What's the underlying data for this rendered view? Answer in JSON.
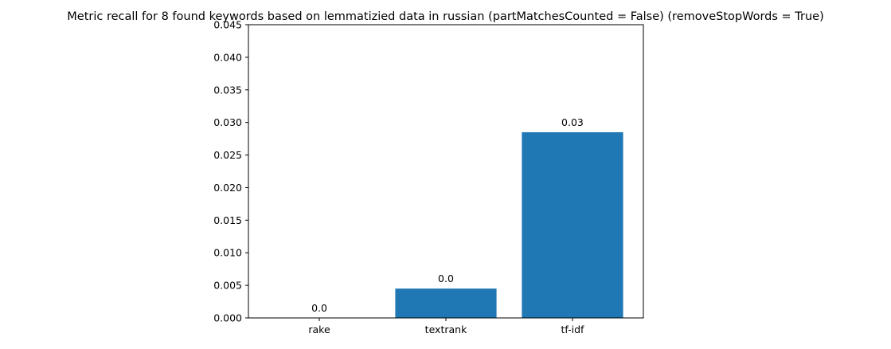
{
  "chart_data": {
    "type": "bar",
    "title": "Metric recall for 8 found keywords based on lemmatizied data in russian (partMatchesCounted = False) (removeStopWords = True)",
    "xlabel": "",
    "ylabel": "",
    "categories": [
      "rake",
      "textrank",
      "tf-idf"
    ],
    "values": [
      0.0,
      0.0045,
      0.0285
    ],
    "data_labels": [
      "0.0",
      "0.0",
      "0.03"
    ],
    "ylim": [
      0,
      0.045
    ],
    "yticks": [
      0.0,
      0.005,
      0.01,
      0.015,
      0.02,
      0.025,
      0.03,
      0.035,
      0.04,
      0.045
    ],
    "ytick_labels": [
      "0.000",
      "0.005",
      "0.010",
      "0.015",
      "0.020",
      "0.025",
      "0.030",
      "0.035",
      "0.040",
      "0.045"
    ],
    "grid": false,
    "bar_color": "#1f77b4"
  }
}
